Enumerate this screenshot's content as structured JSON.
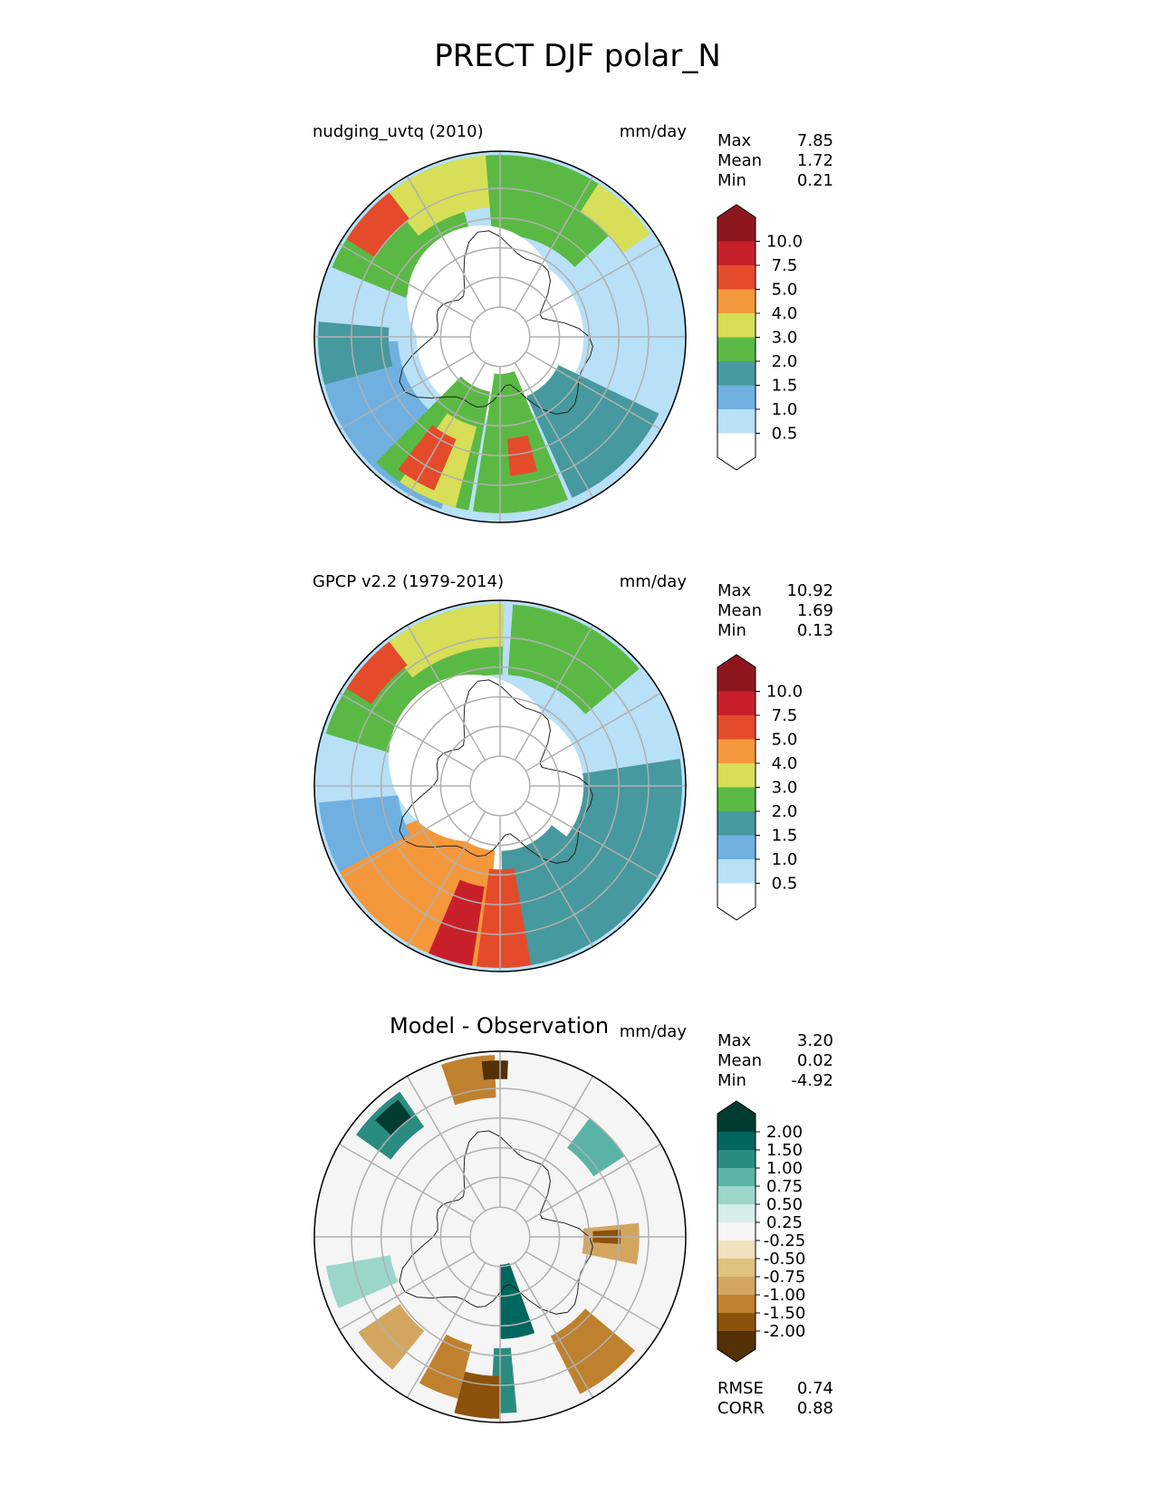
{
  "title": "PRECT DJF polar_N",
  "icons": {
    "pole_grid": "polar-grid",
    "coastline": "coastline-icon"
  },
  "colors": {
    "precip": [
      "#ffffff",
      "#b8e0f7",
      "#6fb0e0",
      "#46999e",
      "#5ab944",
      "#d6df57",
      "#f5983b",
      "#e44b2b",
      "#c8202a",
      "#8e171f"
    ],
    "precip_max_arrow": "#8e171f",
    "diff": [
      "#543005",
      "#8c510a",
      "#bf812d",
      "#d3a660",
      "#dfc27d",
      "#f1e2bf",
      "#f5f5f5",
      "#d6ede9",
      "#9bd6cb",
      "#5ab4a6",
      "#2a8c80",
      "#01665e",
      "#003c30"
    ]
  },
  "chart_data": [
    {
      "type": "heatmap",
      "panel": "test",
      "title": "nudging_uvtq (2010)",
      "units": "mm/day",
      "stats": {
        "max_label": "Max",
        "max": "7.85",
        "mean_label": "Mean",
        "mean": "1.72",
        "min_label": "Min",
        "min": "0.21"
      },
      "colorbar_ticks": [
        "10.0",
        "7.5",
        "5.0",
        "4.0",
        "3.0",
        "2.0",
        "1.5",
        "1.0",
        "0.5"
      ],
      "projection": "north polar stereographic"
    },
    {
      "type": "heatmap",
      "panel": "reference",
      "title": "GPCP v2.2 (1979-2014)",
      "units": "mm/day",
      "stats": {
        "max_label": "Max",
        "max": "10.92",
        "mean_label": "Mean",
        "mean": "1.69",
        "min_label": "Min",
        "min": "0.13"
      },
      "colorbar_ticks": [
        "10.0",
        "7.5",
        "5.0",
        "4.0",
        "3.0",
        "2.0",
        "1.5",
        "1.0",
        "0.5"
      ],
      "projection": "north polar stereographic"
    },
    {
      "type": "heatmap",
      "panel": "difference",
      "title": "Model - Observation",
      "units": "mm/day",
      "stats": {
        "max_label": "Max",
        "max": "3.20",
        "mean_label": "Mean",
        "mean": "0.02",
        "min_label": "Min",
        "min": "-4.92"
      },
      "colorbar_ticks": [
        "2.00",
        "1.50",
        "1.00",
        "0.75",
        "0.50",
        "0.25",
        "-0.25",
        "-0.50",
        "-0.75",
        "-1.00",
        "-1.50",
        "-2.00"
      ],
      "metrics": {
        "rmse_label": "RMSE",
        "rmse": "0.74",
        "corr_label": "CORR",
        "corr": "0.88"
      },
      "projection": "north polar stereographic"
    }
  ]
}
